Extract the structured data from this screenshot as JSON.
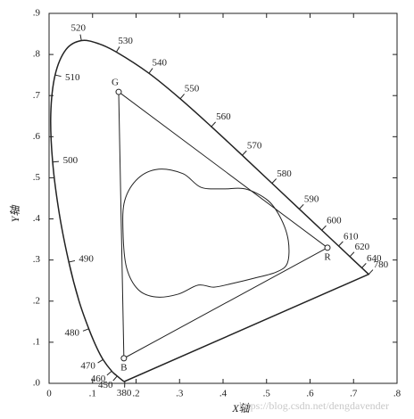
{
  "chart_data": {
    "type": "chromaticity",
    "xlabel": "X轴",
    "ylabel": "Y轴",
    "xlim": [
      0,
      0.8
    ],
    "ylim": [
      0,
      0.9
    ],
    "xticks": [
      0,
      {
        "value": 0.1,
        "label": ".1"
      },
      {
        "value": 0.2,
        "label": ".2"
      },
      {
        "value": 0.3,
        "label": ".3"
      },
      {
        "value": 0.4,
        "label": ".4"
      },
      {
        "value": 0.5,
        "label": ".5"
      },
      {
        "value": 0.6,
        "label": ".6"
      },
      {
        "value": 0.7,
        "label": ".7"
      },
      {
        "value": 0.8,
        "label": ".8"
      }
    ],
    "yticks": [
      {
        "value": 0,
        "label": ".0"
      },
      {
        "value": 0.1,
        "label": ".1"
      },
      {
        "value": 0.2,
        "label": ".2"
      },
      {
        "value": 0.3,
        "label": ".3"
      },
      {
        "value": 0.4,
        "label": ".4"
      },
      {
        "value": 0.5,
        "label": ".5"
      },
      {
        "value": 0.6,
        "label": ".6"
      },
      {
        "value": 0.7,
        "label": ".7"
      },
      {
        "value": 0.8,
        "label": ".8"
      },
      {
        "value": 0.9,
        "label": ".9"
      }
    ],
    "grid": false,
    "color": "#222222",
    "spectral_locus": {
      "x": [
        0.1741,
        0.1714,
        0.1644,
        0.1566,
        0.144,
        0.1241,
        0.1096,
        0.0913,
        0.0687,
        0.0454,
        0.0235,
        0.0082,
        0.0039,
        0.0139,
        0.0389,
        0.0743,
        0.1142,
        0.1547,
        0.2296,
        0.3016,
        0.3731,
        0.4441,
        0.5125,
        0.5752,
        0.627,
        0.6658,
        0.6915,
        0.719,
        0.7347
      ],
      "y": [
        0.005,
        0.0051,
        0.0109,
        0.0177,
        0.0297,
        0.0578,
        0.0868,
        0.1327,
        0.2007,
        0.295,
        0.4127,
        0.5384,
        0.6548,
        0.7502,
        0.812,
        0.8338,
        0.8262,
        0.8059,
        0.7543,
        0.6923,
        0.6245,
        0.5547,
        0.4866,
        0.4242,
        0.3725,
        0.334,
        0.3083,
        0.2809,
        0.2653
      ],
      "wavelengths": [
        380,
        null,
        null,
        450,
        460,
        470,
        null,
        480,
        null,
        490,
        null,
        500,
        null,
        510,
        null,
        520,
        null,
        530,
        540,
        550,
        560,
        570,
        580,
        590,
        600,
        610,
        620,
        640,
        780
      ]
    },
    "gamut_triangle": {
      "x": [
        0.16,
        0.64,
        0.172
      ],
      "y": [
        0.709,
        0.33,
        0.061
      ],
      "point_labels": [
        "G",
        "R",
        "B"
      ]
    },
    "inner_gamut": {
      "x": [
        0.252,
        0.205,
        0.174,
        0.17,
        0.178,
        0.205,
        0.246,
        0.297,
        0.343,
        0.379,
        0.421,
        0.472,
        0.523,
        0.548,
        0.55,
        0.533,
        0.503,
        0.451,
        0.4,
        0.349,
        0.308
      ],
      "y": [
        0.521,
        0.499,
        0.445,
        0.369,
        0.282,
        0.228,
        0.21,
        0.217,
        0.239,
        0.234,
        0.243,
        0.256,
        0.271,
        0.293,
        0.347,
        0.401,
        0.445,
        0.473,
        0.473,
        0.477,
        0.51
      ]
    },
    "watermark": "https://blog.csdn.net/dengdavender"
  }
}
